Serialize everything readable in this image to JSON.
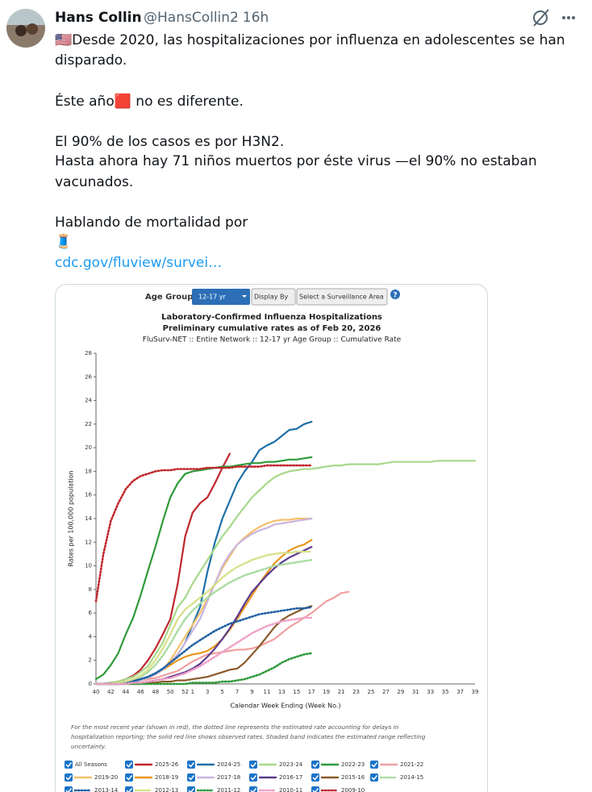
{
  "tweet": {
    "name": "Hans Collin",
    "handle": "@HansCollin2",
    "time": "· 16h",
    "lines": [
      "🇺🇸Desde 2020, las hospitalizaciones por influenza en adolescentes se han",
      "disparado.",
      "Éste año🟥 no es diferente.",
      "El 90% de los casos es por H3N2.",
      "Hasta ahora hay 71 niños muertos por éste virus —el 90% no estaban",
      "vacunados.",
      "Hablando de mortalidad por",
      "🧵"
    ],
    "link": "cdc.gov/fluview/survei…"
  },
  "controls": {
    "age_group_label": "Age Group:",
    "age_group": "12-17 yr",
    "display_by": "Display By",
    "area": "Select a Surveillance Area",
    "help": "?"
  },
  "chart_data": {
    "type": "line",
    "title": "Laboratory-Confirmed Influenza Hospitalizations",
    "subtitle": "Preliminary cumulative rates as of Feb 20, 2026",
    "subtitle2": "FluSurv-NET :: Entire Network :: 12-17 yr Age Group :: Cumulative Rate",
    "y_label": "Rates per 100,000 population",
    "x_label": "Calendar Week Ending (Week No.)",
    "footnote": [
      "For the most recent year (shown in red), the dotted line represents the estimated rate accounting for delays in",
      "hospitalization reporting; the solid red line shows observed rates. Shaded band indicates the estimated range reflecting",
      "uncertainty."
    ],
    "legend_all": "All Seasons",
    "ylim": [
      0,
      28
    ],
    "yticks": [
      0,
      2,
      4,
      6,
      8,
      10,
      12,
      14,
      16,
      18,
      20,
      22,
      24,
      26,
      28
    ],
    "categories": [
      40,
      null,
      42,
      null,
      44,
      null,
      46,
      null,
      48,
      null,
      50,
      null,
      52,
      1,
      null,
      3,
      null,
      5,
      null,
      7,
      null,
      9,
      null,
      11,
      null,
      13,
      null,
      15,
      null,
      17,
      null,
      19,
      null,
      21,
      null,
      23,
      null,
      25,
      null,
      27,
      null,
      29,
      null,
      31,
      null,
      33,
      null,
      35,
      null,
      37,
      null,
      39
    ],
    "series": [
      {
        "name": "2025-26",
        "color": "#c0272d",
        "style": "solid",
        "values": [
          0,
          0,
          0.1,
          0.2,
          0.4,
          0.7,
          1.2,
          2,
          3,
          4.2,
          5.5,
          8.5,
          12.5,
          14.5,
          15.3,
          15.8,
          17,
          18.3,
          19.5,
          null,
          null,
          null,
          null,
          null,
          null,
          null,
          null,
          null,
          null,
          null,
          null,
          null,
          null,
          null,
          null,
          null,
          null,
          null,
          null,
          null,
          null,
          null,
          null,
          null,
          null,
          null,
          null,
          null,
          null,
          null,
          null,
          null
        ]
      },
      {
        "name": "2024-25",
        "color": "#1f6fa8",
        "style": "solid",
        "values": [
          0,
          0,
          0.1,
          0.1,
          0.2,
          0.3,
          0.4,
          0.6,
          0.9,
          1.3,
          1.8,
          2.5,
          3.5,
          5,
          6.5,
          9.5,
          12,
          14,
          15.5,
          17,
          18,
          18.8,
          19.8,
          20.2,
          20.5,
          21,
          21.5,
          21.6,
          22,
          22.2,
          null,
          null,
          null,
          null,
          null,
          null,
          null,
          null,
          null,
          null,
          null,
          null,
          null,
          null,
          null,
          null,
          null,
          null,
          null,
          null,
          null,
          null
        ]
      },
      {
        "name": "2023-24",
        "color": "#a6d98a",
        "style": "solid",
        "values": [
          0,
          0,
          0.1,
          0.2,
          0.4,
          0.6,
          1,
          1.5,
          2.5,
          3.5,
          5,
          6.5,
          7.3,
          8.5,
          9.5,
          10.5,
          11.5,
          12.5,
          13.3,
          14.2,
          15,
          15.8,
          16.4,
          17,
          17.5,
          17.8,
          18,
          18.1,
          18.2,
          18.2,
          18.3,
          18.4,
          18.5,
          18.5,
          18.6,
          18.6,
          18.6,
          18.6,
          18.6,
          18.7,
          18.8,
          18.8,
          18.8,
          18.8,
          18.8,
          18.8,
          18.9,
          18.9,
          18.9,
          18.9,
          18.9,
          18.9
        ]
      },
      {
        "name": "2022-23",
        "color": "#2e9a3a",
        "style": "solid",
        "values": [
          0.4,
          0.8,
          1.6,
          2.6,
          4.2,
          5.6,
          7.5,
          9.6,
          11.6,
          13.8,
          15.8,
          17,
          17.8,
          18,
          18.1,
          18.2,
          18.3,
          18.4,
          18.4,
          18.5,
          18.6,
          18.7,
          18.7,
          18.8,
          18.8,
          18.9,
          19,
          19,
          19.1,
          19.2,
          null,
          null,
          null,
          null,
          null,
          null,
          null,
          null,
          null,
          null,
          null,
          null,
          null,
          null,
          null,
          null,
          null,
          null,
          null,
          null,
          null,
          null
        ]
      },
      {
        "name": "2021-22",
        "color": "#f0a0a0",
        "style": "solid",
        "values": [
          0,
          0,
          0,
          0.1,
          0.1,
          0.2,
          0.3,
          0.4,
          0.5,
          0.7,
          0.9,
          1.1,
          1.5,
          1.9,
          2.2,
          2.5,
          2.6,
          2.7,
          2.8,
          2.9,
          2.9,
          3,
          3.2,
          3.5,
          3.8,
          4.3,
          4.8,
          5.2,
          5.6,
          6,
          6.5,
          7,
          7.3,
          7.7,
          7.8,
          null,
          null,
          null,
          null,
          null,
          null,
          null,
          null,
          null,
          null,
          null,
          null,
          null,
          null,
          null,
          null,
          null
        ]
      },
      {
        "name": "2019-20",
        "color": "#f5c06b",
        "style": "solid",
        "values": [
          0,
          0,
          0,
          0.1,
          0.1,
          0.2,
          0.3,
          0.5,
          0.8,
          1.2,
          2,
          3,
          4,
          5,
          6,
          7.2,
          8.5,
          9.8,
          10.8,
          11.8,
          12.4,
          12.9,
          13.3,
          13.6,
          13.8,
          13.9,
          13.9,
          14,
          14,
          14,
          null,
          null,
          null,
          null,
          null,
          null,
          null,
          null,
          null,
          null,
          null,
          null,
          null,
          null,
          null,
          null,
          null,
          null,
          null,
          null,
          null,
          null
        ]
      },
      {
        "name": "2018-19",
        "color": "#e8961e",
        "style": "solid",
        "values": [
          0,
          0,
          0,
          0,
          0.1,
          0.2,
          0.3,
          0.5,
          0.8,
          1.2,
          1.6,
          2,
          2.3,
          2.5,
          2.6,
          2.8,
          3.2,
          3.8,
          4.6,
          5.5,
          6.5,
          7.5,
          8.5,
          9.4,
          10.2,
          10.8,
          11.3,
          11.6,
          11.8,
          12.2,
          null,
          null,
          null,
          null,
          null,
          null,
          null,
          null,
          null,
          null,
          null,
          null,
          null,
          null,
          null,
          null,
          null,
          null,
          null,
          null,
          null,
          null
        ]
      },
      {
        "name": "2017-18",
        "color": "#c8b5dc",
        "style": "solid",
        "values": [
          0,
          0,
          0,
          0,
          0.1,
          0.2,
          0.3,
          0.5,
          0.8,
          1.2,
          1.8,
          2.5,
          3.5,
          4.5,
          5.5,
          7,
          8.5,
          10,
          11,
          11.8,
          12.3,
          12.7,
          13,
          13.2,
          13.5,
          13.6,
          13.7,
          13.8,
          13.9,
          14,
          null,
          null,
          null,
          null,
          null,
          null,
          null,
          null,
          null,
          null,
          null,
          null,
          null,
          null,
          null,
          null,
          null,
          null,
          null,
          null,
          null,
          null
        ]
      },
      {
        "name": "2016-17",
        "color": "#5b3b8c",
        "style": "solid",
        "values": [
          0,
          0,
          0,
          0,
          0,
          0.1,
          0.1,
          0.2,
          0.3,
          0.4,
          0.6,
          0.8,
          1,
          1.3,
          1.7,
          2.3,
          3,
          3.8,
          4.7,
          5.7,
          6.8,
          7.8,
          8.5,
          9.2,
          9.8,
          10.3,
          10.7,
          11,
          11.3,
          11.6,
          null,
          null,
          null,
          null,
          null,
          null,
          null,
          null,
          null,
          null,
          null,
          null,
          null,
          null,
          null,
          null,
          null,
          null,
          null,
          null,
          null,
          null
        ]
      },
      {
        "name": "2015-16",
        "color": "#8b5a2b",
        "style": "solid",
        "values": [
          0,
          0,
          0,
          0,
          0,
          0,
          0,
          0.1,
          0.1,
          0.2,
          0.2,
          0.3,
          0.3,
          0.4,
          0.5,
          0.6,
          0.8,
          1,
          1.2,
          1.3,
          1.8,
          2.5,
          3.2,
          4,
          4.8,
          5.4,
          5.8,
          6.1,
          6.4,
          6.6,
          null,
          null,
          null,
          null,
          null,
          null,
          null,
          null,
          null,
          null,
          null,
          null,
          null,
          null,
          null,
          null,
          null,
          null,
          null,
          null,
          null,
          null
        ]
      },
      {
        "name": "2014-15",
        "color": "#a8dba0",
        "style": "dotted",
        "values": [
          0,
          0,
          0,
          0.1,
          0.2,
          0.4,
          0.6,
          1,
          1.6,
          2.4,
          3.4,
          4.5,
          5.5,
          6.2,
          6.8,
          7.3,
          7.8,
          8.2,
          8.6,
          8.9,
          9.2,
          9.4,
          9.6,
          9.8,
          10,
          10.1,
          10.2,
          10.3,
          10.4,
          10.5,
          null,
          null,
          null,
          null,
          null,
          null,
          null,
          null,
          null,
          null,
          null,
          null,
          null,
          null,
          null,
          null,
          null,
          null,
          null,
          null,
          null,
          null
        ]
      },
      {
        "name": "2013-14",
        "color": "#1f5fa0",
        "style": "dotted",
        "values": [
          0,
          0,
          0,
          0,
          0.1,
          0.2,
          0.4,
          0.6,
          0.9,
          1.3,
          1.8,
          2.3,
          2.8,
          3.3,
          3.7,
          4.1,
          4.5,
          4.8,
          5.1,
          5.3,
          5.5,
          5.7,
          5.9,
          6,
          6.1,
          6.2,
          6.3,
          6.4,
          6.4,
          6.5,
          null,
          null,
          null,
          null,
          null,
          null,
          null,
          null,
          null,
          null,
          null,
          null,
          null,
          null,
          null,
          null,
          null,
          null,
          null,
          null,
          null,
          null
        ]
      },
      {
        "name": "2012-13",
        "color": "#d8e08a",
        "style": "dotted",
        "values": [
          0,
          0,
          0,
          0.1,
          0.2,
          0.4,
          0.7,
          1.2,
          2,
          3,
          4.2,
          5.5,
          6.3,
          6.8,
          7.3,
          7.8,
          8.4,
          9,
          9.5,
          9.9,
          10.2,
          10.5,
          10.7,
          10.9,
          11,
          11.1,
          11.1,
          11.2,
          11.2,
          11.2,
          null,
          null,
          null,
          null,
          null,
          null,
          null,
          null,
          null,
          null,
          null,
          null,
          null,
          null,
          null,
          null,
          null,
          null,
          null,
          null,
          null,
          null
        ]
      },
      {
        "name": "2011-12",
        "color": "#2e9a3a",
        "style": "dotted",
        "values": [
          0,
          0,
          0,
          0,
          0,
          0,
          0,
          0,
          0,
          0,
          0,
          0,
          0,
          0.1,
          0.1,
          0.1,
          0.1,
          0.2,
          0.2,
          0.3,
          0.4,
          0.6,
          0.8,
          1.1,
          1.4,
          1.8,
          2.1,
          2.3,
          2.5,
          2.6,
          null,
          null,
          null,
          null,
          null,
          null,
          null,
          null,
          null,
          null,
          null,
          null,
          null,
          null,
          null,
          null,
          null,
          null,
          null,
          null,
          null,
          null
        ]
      },
      {
        "name": "2010-11",
        "color": "#f0a0c8",
        "style": "dotted",
        "values": [
          0,
          0,
          0,
          0,
          0,
          0.1,
          0.1,
          0.2,
          0.3,
          0.4,
          0.5,
          0.7,
          0.9,
          1.2,
          1.5,
          1.9,
          2.3,
          2.7,
          3.1,
          3.5,
          3.9,
          4.3,
          4.6,
          4.9,
          5.1,
          5.3,
          5.4,
          5.5,
          5.6,
          5.6,
          null,
          null,
          null,
          null,
          null,
          null,
          null,
          null,
          null,
          null,
          null,
          null,
          null,
          null,
          null,
          null,
          null,
          null,
          null,
          null,
          null,
          null
        ]
      },
      {
        "name": "2009-10",
        "color": "#c0272d",
        "style": "dotted",
        "values": [
          7,
          11,
          13.8,
          15.3,
          16.5,
          17.2,
          17.6,
          17.8,
          18,
          18.1,
          18.1,
          18.2,
          18.2,
          18.2,
          18.2,
          18.3,
          18.3,
          18.3,
          18.3,
          18.4,
          18.4,
          18.4,
          18.4,
          18.5,
          18.5,
          18.5,
          18.5,
          18.5,
          18.5,
          18.5,
          null,
          null,
          null,
          null,
          null,
          null,
          null,
          null,
          null,
          null,
          null,
          null,
          null,
          null,
          null,
          null,
          null,
          null,
          null,
          null,
          null,
          null
        ]
      }
    ]
  }
}
